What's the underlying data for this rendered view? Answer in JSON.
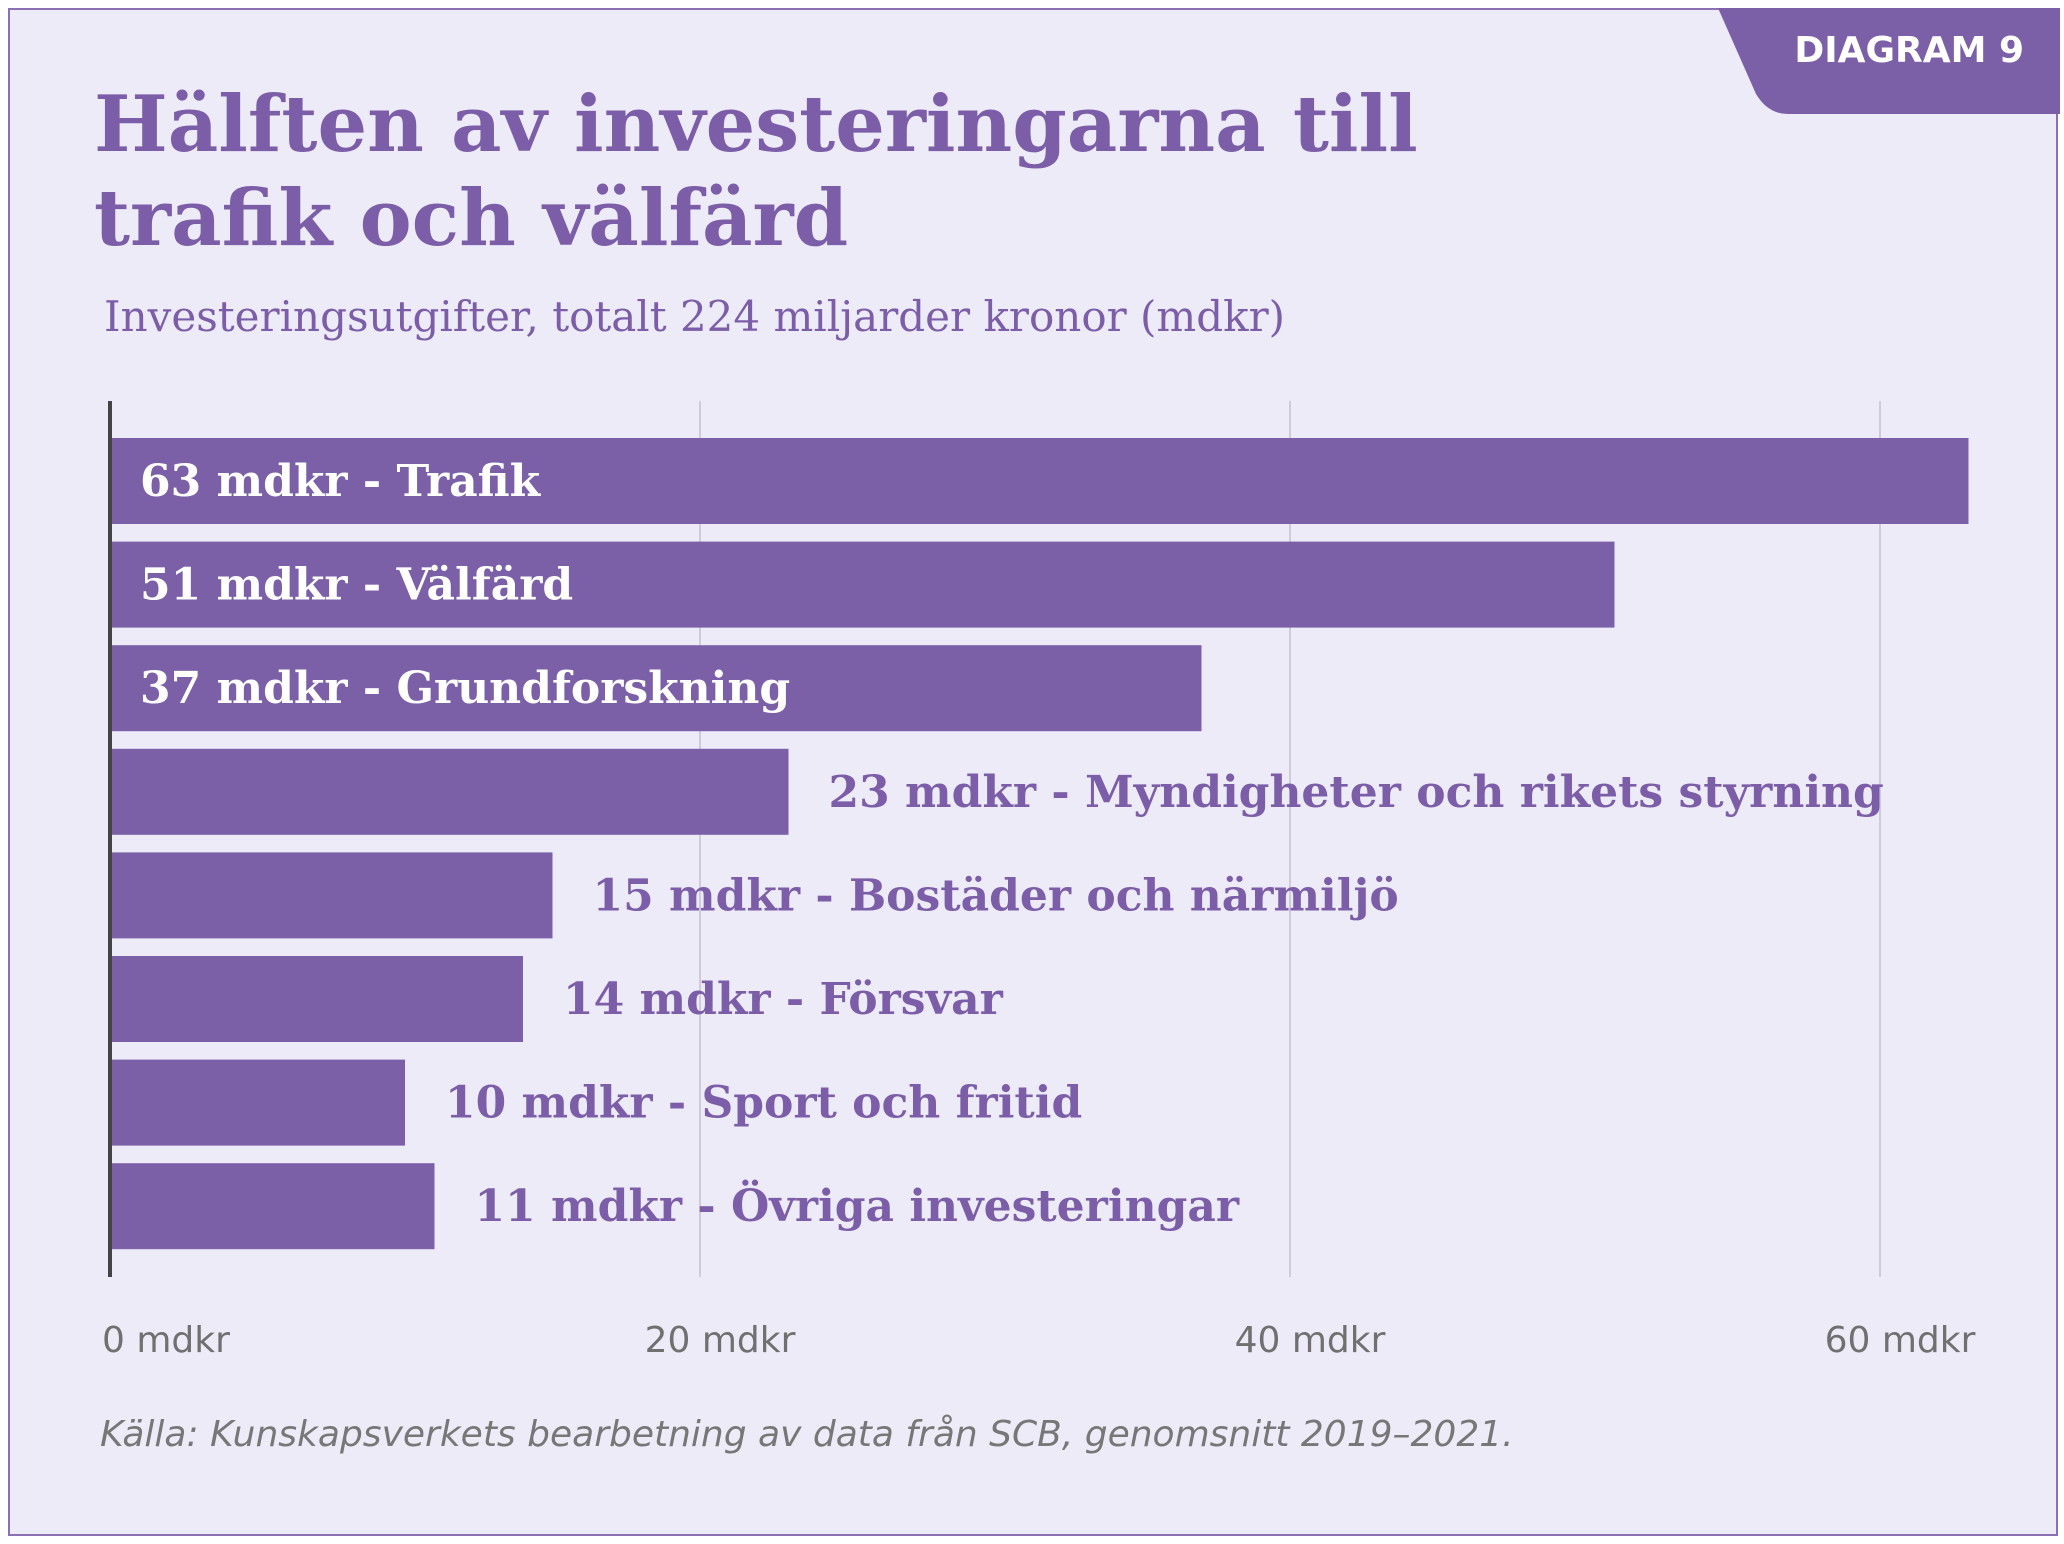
{
  "badge": "DIAGRAM 9",
  "title": "Hälften av investeringarna till trafik och välfärd",
  "subtitle": "Investeringsutgifter, totalt 224 miljarder kronor (mdkr)",
  "source": "Källa: Kunskapsverkets bearbetning av data från SCB, genomsnitt 2019–2021.",
  "colors": {
    "bar": "#7b60a8",
    "background": "#eeebf8",
    "text": "#7b5ea7"
  },
  "chart_data": {
    "type": "bar",
    "orientation": "horizontal",
    "categories": [
      "Trafik",
      "Välfärd",
      "Grundforskning",
      "Myndigheter och rikets styrning",
      "Bostäder och närmiljö",
      "Försvar",
      "Sport och fritid",
      "Övriga investeringar"
    ],
    "values": [
      63,
      51,
      37,
      23,
      15,
      14,
      10,
      11
    ],
    "data_labels": [
      "63 mdkr - Trafik",
      "51 mdkr - Välfärd",
      "37 mdkr - Grundforskning",
      "23 mdkr - Myndigheter och rikets styrning",
      "15 mdkr - Bostäder och närmiljö",
      "14 mdkr - Försvar",
      "10 mdkr - Sport och fritid",
      "11 mdkr - Övriga investeringar"
    ],
    "x_ticks": [
      0,
      20,
      40,
      60
    ],
    "x_tick_labels": [
      "0 mdkr",
      "20 mdkr",
      "40 mdkr",
      "60 mdkr"
    ],
    "xlim": [
      0,
      65
    ],
    "grid": true,
    "unit": "mdkr"
  }
}
